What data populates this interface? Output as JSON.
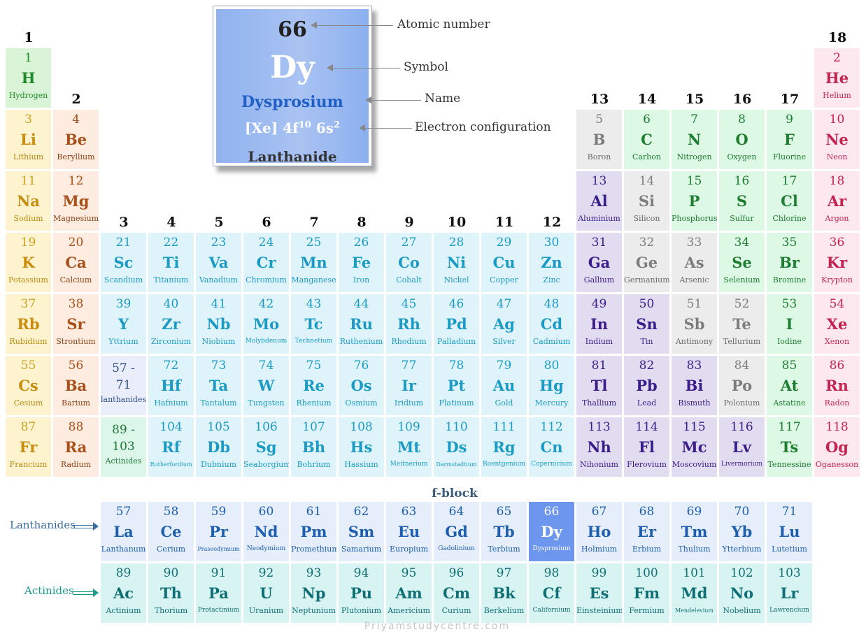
{
  "featured": {
    "number": "66",
    "symbol": "Dy",
    "name": "Dysprosium",
    "config_prefix": "[Xe] 4f",
    "config_exp1": "10",
    "config_mid": " 6s",
    "config_exp2": "2",
    "category": "Lanthanide"
  },
  "annotations": {
    "atomic_number": "Atomic number",
    "symbol": "Symbol",
    "name": "Name",
    "electron_configuration": "Electron configuration"
  },
  "f_block_label": "f-block",
  "row_labels": {
    "lanthanides": "Lanthanides",
    "actinides": "Actinides"
  },
  "watermark": "Priyamstudycentre.com",
  "groups": [
    {
      "n": "1",
      "col": 1,
      "row": 1
    },
    {
      "n": "2",
      "col": 2,
      "row": 2
    },
    {
      "n": "3",
      "col": 3,
      "row": 4
    },
    {
      "n": "4",
      "col": 4,
      "row": 4
    },
    {
      "n": "5",
      "col": 5,
      "row": 4
    },
    {
      "n": "6",
      "col": 6,
      "row": 4
    },
    {
      "n": "7",
      "col": 7,
      "row": 4
    },
    {
      "n": "8",
      "col": 8,
      "row": 4
    },
    {
      "n": "9",
      "col": 9,
      "row": 4
    },
    {
      "n": "10",
      "col": 10,
      "row": 4
    },
    {
      "n": "11",
      "col": 11,
      "row": 4
    },
    {
      "n": "12",
      "col": 12,
      "row": 4
    },
    {
      "n": "13",
      "col": 13,
      "row": 2
    },
    {
      "n": "14",
      "col": 14,
      "row": 2
    },
    {
      "n": "15",
      "col": 15,
      "row": 2
    },
    {
      "n": "16",
      "col": 16,
      "row": 2
    },
    {
      "n": "17",
      "col": 17,
      "row": 2
    },
    {
      "n": "18",
      "col": 18,
      "row": 1
    }
  ],
  "colors": {
    "alkali": {
      "bg": "#fdf3cf",
      "num": "#c9a227",
      "sym": "#c98d0c",
      "name": "#b88a10"
    },
    "alkaline": {
      "bg": "#fdecdf",
      "num": "#a8501a",
      "sym": "#a8501a",
      "name": "#8f4215"
    },
    "transition": {
      "bg": "#dff3fa",
      "num": "#1b9bc4",
      "sym": "#1b9bc4",
      "name": "#1b9bc4"
    },
    "post": {
      "bg": "#e2dcf0",
      "num": "#3a1d8a",
      "sym": "#3a1d8a",
      "name": "#3a1d8a"
    },
    "metalloid": {
      "bg": "#ececec",
      "num": "#7d7d7d",
      "sym": "#7d7d7d",
      "name": "#6b6b6b"
    },
    "nonmetal": {
      "bg": "#ddf8e5",
      "num": "#1d7d30",
      "sym": "#1d7d30",
      "name": "#1d7d30"
    },
    "noble": {
      "bg": "#fde8ef",
      "num": "#c4234f",
      "sym": "#c4234f",
      "name": "#c4234f"
    },
    "hydrogen": {
      "bg": "#d9f4d6",
      "num": "#1f8a2a",
      "sym": "#1f8a2a",
      "name": "#1f8a2a"
    },
    "lanth": {
      "bg": "#e6eefc",
      "num": "#1d5fae",
      "sym": "#1d5fae",
      "name": "#1d5fae"
    },
    "lanthsel": {
      "bg": "#6d96ee",
      "num": "#ffffff",
      "sym": "#ffffff",
      "name": "#ffffff"
    },
    "actin": {
      "bg": "#d7f4f3",
      "num": "#0f6f74",
      "sym": "#0f6f74",
      "name": "#0f6f74"
    },
    "lanth_range": {
      "bg": "#eaeefb",
      "num": "#2d4f88",
      "sym": "#2d4f88",
      "name": "#2d4f88"
    },
    "actin_range": {
      "bg": "#dcf6ea",
      "num": "#1f7a3a",
      "sym": "#1f7a3a",
      "name": "#1f7a3a"
    },
    "row_label_lanth": "#3b6ea0",
    "row_label_actin": "#1a9a8c"
  },
  "elements": [
    {
      "num": "1",
      "sym": "H",
      "name": "Hydrogen",
      "col": 1,
      "row": 1,
      "cat": "hydrogen"
    },
    {
      "num": "2",
      "sym": "He",
      "name": "Helium",
      "col": 18,
      "row": 1,
      "cat": "noble"
    },
    {
      "num": "3",
      "sym": "Li",
      "name": "Lithium",
      "col": 1,
      "row": 2,
      "cat": "alkali"
    },
    {
      "num": "4",
      "sym": "Be",
      "name": "Beryllium",
      "col": 2,
      "row": 2,
      "cat": "alkaline"
    },
    {
      "num": "5",
      "sym": "B",
      "name": "Boron",
      "col": 13,
      "row": 2,
      "cat": "metalloid"
    },
    {
      "num": "6",
      "sym": "C",
      "name": "Carbon",
      "col": 14,
      "row": 2,
      "cat": "nonmetal"
    },
    {
      "num": "7",
      "sym": "N",
      "name": "Nitrogen",
      "col": 15,
      "row": 2,
      "cat": "nonmetal"
    },
    {
      "num": "8",
      "sym": "O",
      "name": "Oxygen",
      "col": 16,
      "row": 2,
      "cat": "nonmetal"
    },
    {
      "num": "9",
      "sym": "F",
      "name": "Fluorine",
      "col": 17,
      "row": 2,
      "cat": "nonmetal"
    },
    {
      "num": "10",
      "sym": "Ne",
      "name": "Neon",
      "col": 18,
      "row": 2,
      "cat": "noble"
    },
    {
      "num": "11",
      "sym": "Na",
      "name": "Sodium",
      "col": 1,
      "row": 3,
      "cat": "alkali"
    },
    {
      "num": "12",
      "sym": "Mg",
      "name": "Magnesium",
      "col": 2,
      "row": 3,
      "cat": "alkaline"
    },
    {
      "num": "13",
      "sym": "Al",
      "name": "Aluminium",
      "col": 13,
      "row": 3,
      "cat": "post"
    },
    {
      "num": "14",
      "sym": "Si",
      "name": "Silicon",
      "col": 14,
      "row": 3,
      "cat": "metalloid"
    },
    {
      "num": "15",
      "sym": "P",
      "name": "Phosphorus",
      "col": 15,
      "row": 3,
      "cat": "nonmetal"
    },
    {
      "num": "16",
      "sym": "S",
      "name": "Sulfur",
      "col": 16,
      "row": 3,
      "cat": "nonmetal"
    },
    {
      "num": "17",
      "sym": "Cl",
      "name": "Chlorine",
      "col": 17,
      "row": 3,
      "cat": "nonmetal"
    },
    {
      "num": "18",
      "sym": "Ar",
      "name": "Argon",
      "col": 18,
      "row": 3,
      "cat": "noble"
    },
    {
      "num": "19",
      "sym": "K",
      "name": "Potassium",
      "col": 1,
      "row": 4,
      "cat": "alkali"
    },
    {
      "num": "20",
      "sym": "Ca",
      "name": "Calcium",
      "col": 2,
      "row": 4,
      "cat": "alkaline"
    },
    {
      "num": "21",
      "sym": "Sc",
      "name": "Scandium",
      "col": 3,
      "row": 4,
      "cat": "transition"
    },
    {
      "num": "22",
      "sym": "Ti",
      "name": "Titanium",
      "col": 4,
      "row": 4,
      "cat": "transition"
    },
    {
      "num": "23",
      "sym": "Va",
      "name": "Vanadium",
      "col": 5,
      "row": 4,
      "cat": "transition"
    },
    {
      "num": "24",
      "sym": "Cr",
      "name": "Chromium",
      "col": 6,
      "row": 4,
      "cat": "transition"
    },
    {
      "num": "25",
      "sym": "Mn",
      "name": "Manganese",
      "col": 7,
      "row": 4,
      "cat": "transition"
    },
    {
      "num": "26",
      "sym": "Fe",
      "name": "Iron",
      "col": 8,
      "row": 4,
      "cat": "transition"
    },
    {
      "num": "27",
      "sym": "Co",
      "name": "Cobalt",
      "col": 9,
      "row": 4,
      "cat": "transition"
    },
    {
      "num": "28",
      "sym": "Ni",
      "name": "Nickel",
      "col": 10,
      "row": 4,
      "cat": "transition"
    },
    {
      "num": "29",
      "sym": "Cu",
      "name": "Copper",
      "col": 11,
      "row": 4,
      "cat": "transition"
    },
    {
      "num": "30",
      "sym": "Zn",
      "name": "Zinc",
      "col": 12,
      "row": 4,
      "cat": "transition"
    },
    {
      "num": "31",
      "sym": "Ga",
      "name": "Gallium",
      "col": 13,
      "row": 4,
      "cat": "post"
    },
    {
      "num": "32",
      "sym": "Ge",
      "name": "Germanium",
      "col": 14,
      "row": 4,
      "cat": "metalloid"
    },
    {
      "num": "33",
      "sym": "As",
      "name": "Arsenic",
      "col": 15,
      "row": 4,
      "cat": "metalloid"
    },
    {
      "num": "34",
      "sym": "Se",
      "name": "Selenium",
      "col": 16,
      "row": 4,
      "cat": "nonmetal"
    },
    {
      "num": "35",
      "sym": "Br",
      "name": "Bromine",
      "col": 17,
      "row": 4,
      "cat": "nonmetal"
    },
    {
      "num": "36",
      "sym": "Kr",
      "name": "Krypton",
      "col": 18,
      "row": 4,
      "cat": "noble"
    },
    {
      "num": "37",
      "sym": "Rb",
      "name": "Rubidium",
      "col": 1,
      "row": 5,
      "cat": "alkali"
    },
    {
      "num": "38",
      "sym": "Sr",
      "name": "Strontium",
      "col": 2,
      "row": 5,
      "cat": "alkaline"
    },
    {
      "num": "39",
      "sym": "Y",
      "name": "Yttrium",
      "col": 3,
      "row": 5,
      "cat": "transition"
    },
    {
      "num": "40",
      "sym": "Zr",
      "name": "Zirconium",
      "col": 4,
      "row": 5,
      "cat": "transition"
    },
    {
      "num": "41",
      "sym": "Nb",
      "name": "Niobium",
      "col": 5,
      "row": 5,
      "cat": "transition"
    },
    {
      "num": "42",
      "sym": "Mo",
      "name": "Molybdenum",
      "col": 6,
      "row": 5,
      "cat": "transition",
      "fs": "sm"
    },
    {
      "num": "43",
      "sym": "Tc",
      "name": "Technetium",
      "col": 7,
      "row": 5,
      "cat": "transition",
      "fs": "sm"
    },
    {
      "num": "44",
      "sym": "Ru",
      "name": "Ruthenium",
      "col": 8,
      "row": 5,
      "cat": "transition"
    },
    {
      "num": "45",
      "sym": "Rh",
      "name": "Rhodium",
      "col": 9,
      "row": 5,
      "cat": "transition"
    },
    {
      "num": "46",
      "sym": "Pd",
      "name": "Palladium",
      "col": 10,
      "row": 5,
      "cat": "transition"
    },
    {
      "num": "47",
      "sym": "Ag",
      "name": "Silver",
      "col": 11,
      "row": 5,
      "cat": "transition"
    },
    {
      "num": "48",
      "sym": "Cd",
      "name": "Cadmium",
      "col": 12,
      "row": 5,
      "cat": "transition"
    },
    {
      "num": "49",
      "sym": "In",
      "name": "Indium",
      "col": 13,
      "row": 5,
      "cat": "post"
    },
    {
      "num": "50",
      "sym": "Sn",
      "name": "Tin",
      "col": 14,
      "row": 5,
      "cat": "post"
    },
    {
      "num": "51",
      "sym": "Sb",
      "name": "Antimony",
      "col": 15,
      "row": 5,
      "cat": "metalloid"
    },
    {
      "num": "52",
      "sym": "Te",
      "name": "Tellurium",
      "col": 16,
      "row": 5,
      "cat": "metalloid"
    },
    {
      "num": "53",
      "sym": "I",
      "name": "Iodine",
      "col": 17,
      "row": 5,
      "cat": "nonmetal"
    },
    {
      "num": "54",
      "sym": "Xe",
      "name": "Xenon",
      "col": 18,
      "row": 5,
      "cat": "noble"
    },
    {
      "num": "55",
      "sym": "Cs",
      "name": "Cesium",
      "col": 1,
      "row": 6,
      "cat": "alkali"
    },
    {
      "num": "56",
      "sym": "Ba",
      "name": "Barium",
      "col": 2,
      "row": 6,
      "cat": "alkaline"
    },
    {
      "num": "57 -",
      "sym": "71",
      "name": "lanthanides",
      "col": 3,
      "row": 6,
      "cat": "lanth_range",
      "range": true
    },
    {
      "num": "72",
      "sym": "Hf",
      "name": "Hafnium",
      "col": 4,
      "row": 6,
      "cat": "transition"
    },
    {
      "num": "73",
      "sym": "Ta",
      "name": "Tantalum",
      "col": 5,
      "row": 6,
      "cat": "transition"
    },
    {
      "num": "74",
      "sym": "W",
      "name": "Tungsten",
      "col": 6,
      "row": 6,
      "cat": "transition"
    },
    {
      "num": "75",
      "sym": "Re",
      "name": "Rhenium",
      "col": 7,
      "row": 6,
      "cat": "transition"
    },
    {
      "num": "76",
      "sym": "Os",
      "name": "Osmium",
      "col": 8,
      "row": 6,
      "cat": "transition"
    },
    {
      "num": "77",
      "sym": "Ir",
      "name": "Iridium",
      "col": 9,
      "row": 6,
      "cat": "transition"
    },
    {
      "num": "78",
      "sym": "Pt",
      "name": "Platinum",
      "col": 10,
      "row": 6,
      "cat": "transition"
    },
    {
      "num": "79",
      "sym": "Au",
      "name": "Gold",
      "col": 11,
      "row": 6,
      "cat": "transition"
    },
    {
      "num": "80",
      "sym": "Hg",
      "name": "Mercury",
      "col": 12,
      "row": 6,
      "cat": "transition"
    },
    {
      "num": "81",
      "sym": "Tl",
      "name": "Thallium",
      "col": 13,
      "row": 6,
      "cat": "post"
    },
    {
      "num": "82",
      "sym": "Pb",
      "name": "Lead",
      "col": 14,
      "row": 6,
      "cat": "post"
    },
    {
      "num": "83",
      "sym": "Bi",
      "name": "Bismuth",
      "col": 15,
      "row": 6,
      "cat": "post"
    },
    {
      "num": "84",
      "sym": "Po",
      "name": "Polonium",
      "col": 16,
      "row": 6,
      "cat": "metalloid"
    },
    {
      "num": "85",
      "sym": "At",
      "name": "Astatine",
      "col": 17,
      "row": 6,
      "cat": "nonmetal"
    },
    {
      "num": "86",
      "sym": "Rn",
      "name": "Radon",
      "col": 18,
      "row": 6,
      "cat": "noble"
    },
    {
      "num": "87",
      "sym": "Fr",
      "name": "Francium",
      "col": 1,
      "row": 7,
      "cat": "alkali"
    },
    {
      "num": "88",
      "sym": "Ra",
      "name": "Radium",
      "col": 2,
      "row": 7,
      "cat": "alkaline"
    },
    {
      "num": "89 -",
      "sym": "103",
      "name": "Actinides",
      "col": 3,
      "row": 7,
      "cat": "actin_range",
      "range": true
    },
    {
      "num": "104",
      "sym": "Rf",
      "name": "Rutherfordium",
      "col": 4,
      "row": 7,
      "cat": "transition",
      "fs": "xs"
    },
    {
      "num": "105",
      "sym": "Db",
      "name": "Dubnium",
      "col": 5,
      "row": 7,
      "cat": "transition"
    },
    {
      "num": "106",
      "sym": "Sg",
      "name": "Seaborgium",
      "col": 6,
      "row": 7,
      "cat": "transition"
    },
    {
      "num": "107",
      "sym": "Bh",
      "name": "Bohrium",
      "col": 7,
      "row": 7,
      "cat": "transition"
    },
    {
      "num": "108",
      "sym": "Hs",
      "name": "Hassium",
      "col": 8,
      "row": 7,
      "cat": "transition"
    },
    {
      "num": "109",
      "sym": "Mt",
      "name": "Meitnerium",
      "col": 9,
      "row": 7,
      "cat": "transition",
      "fs": "sm"
    },
    {
      "num": "110",
      "sym": "Ds",
      "name": "Darmstadtium",
      "col": 10,
      "row": 7,
      "cat": "transition",
      "fs": "xs"
    },
    {
      "num": "111",
      "sym": "Rg",
      "name": "Roentgenium",
      "col": 11,
      "row": 7,
      "cat": "transition",
      "fs": "sm"
    },
    {
      "num": "112",
      "sym": "Cn",
      "name": "Copernicium",
      "col": 12,
      "row": 7,
      "cat": "transition",
      "fs": "sm"
    },
    {
      "num": "113",
      "sym": "Nh",
      "name": "Nihonium",
      "col": 13,
      "row": 7,
      "cat": "post"
    },
    {
      "num": "114",
      "sym": "Fl",
      "name": "Flerovium",
      "col": 14,
      "row": 7,
      "cat": "post"
    },
    {
      "num": "115",
      "sym": "Mc",
      "name": "Moscovium",
      "col": 15,
      "row": 7,
      "cat": "post"
    },
    {
      "num": "116",
      "sym": "Lv",
      "name": "Livermorium",
      "col": 16,
      "row": 7,
      "cat": "post",
      "fs": "sm"
    },
    {
      "num": "117",
      "sym": "Ts",
      "name": "Tennessine",
      "col": 17,
      "row": 7,
      "cat": "nonmetal"
    },
    {
      "num": "118",
      "sym": "Og",
      "name": "Oganesson",
      "col": 18,
      "row": 7,
      "cat": "noble"
    },
    {
      "num": "57",
      "sym": "La",
      "name": "Lanthanum",
      "col": 3,
      "row": 9,
      "cat": "lanth"
    },
    {
      "num": "58",
      "sym": "Ce",
      "name": "Cerium",
      "col": 4,
      "row": 9,
      "cat": "lanth"
    },
    {
      "num": "59",
      "sym": "Pr",
      "name": "Praseodymium",
      "col": 5,
      "row": 9,
      "cat": "lanth",
      "fs": "xs"
    },
    {
      "num": "60",
      "sym": "Nd",
      "name": "Neodymium",
      "col": 6,
      "row": 9,
      "cat": "lanth",
      "fs": "sm"
    },
    {
      "num": "61",
      "sym": "Pm",
      "name": "Promethium",
      "col": 7,
      "row": 9,
      "cat": "lanth"
    },
    {
      "num": "62",
      "sym": "Sm",
      "name": "Samarium",
      "col": 8,
      "row": 9,
      "cat": "lanth"
    },
    {
      "num": "63",
      "sym": "Eu",
      "name": "Europium",
      "col": 9,
      "row": 9,
      "cat": "lanth"
    },
    {
      "num": "64",
      "sym": "Gd",
      "name": "Gadolinium",
      "col": 10,
      "row": 9,
      "cat": "lanth",
      "fs": "sm"
    },
    {
      "num": "65",
      "sym": "Tb",
      "name": "Terbium",
      "col": 11,
      "row": 9,
      "cat": "lanth"
    },
    {
      "num": "66",
      "sym": "Dy",
      "name": "Dysprosium",
      "col": 12,
      "row": 9,
      "cat": "lanthsel",
      "fs": "sm"
    },
    {
      "num": "67",
      "sym": "Ho",
      "name": "Holmium",
      "col": 13,
      "row": 9,
      "cat": "lanth"
    },
    {
      "num": "68",
      "sym": "Er",
      "name": "Erbium",
      "col": 14,
      "row": 9,
      "cat": "lanth"
    },
    {
      "num": "69",
      "sym": "Tm",
      "name": "Thulium",
      "col": 15,
      "row": 9,
      "cat": "lanth"
    },
    {
      "num": "70",
      "sym": "Yb",
      "name": "Ytterbium",
      "col": 16,
      "row": 9,
      "cat": "lanth"
    },
    {
      "num": "71",
      "sym": "Lu",
      "name": "Lutetium",
      "col": 17,
      "row": 9,
      "cat": "lanth"
    },
    {
      "num": "89",
      "sym": "Ac",
      "name": "Actinium",
      "col": 3,
      "row": 10,
      "cat": "actin"
    },
    {
      "num": "90",
      "sym": "Th",
      "name": "Thorium",
      "col": 4,
      "row": 10,
      "cat": "actin"
    },
    {
      "num": "91",
      "sym": "Pa",
      "name": "Protactinium",
      "col": 5,
      "row": 10,
      "cat": "actin",
      "fs": "sm"
    },
    {
      "num": "92",
      "sym": "U",
      "name": "Uranium",
      "col": 6,
      "row": 10,
      "cat": "actin"
    },
    {
      "num": "93",
      "sym": "Np",
      "name": "Neptunium",
      "col": 7,
      "row": 10,
      "cat": "actin"
    },
    {
      "num": "94",
      "sym": "Pu",
      "name": "Plutonium",
      "col": 8,
      "row": 10,
      "cat": "actin"
    },
    {
      "num": "95",
      "sym": "Am",
      "name": "Americium",
      "col": 9,
      "row": 10,
      "cat": "actin"
    },
    {
      "num": "96",
      "sym": "Cm",
      "name": "Curium",
      "col": 10,
      "row": 10,
      "cat": "actin"
    },
    {
      "num": "97",
      "sym": "Bk",
      "name": "Berkelium",
      "col": 11,
      "row": 10,
      "cat": "actin"
    },
    {
      "num": "98",
      "sym": "Cf",
      "name": "Californium",
      "col": 12,
      "row": 10,
      "cat": "actin",
      "fs": "sm"
    },
    {
      "num": "99",
      "sym": "Es",
      "name": "Einsteinium",
      "col": 13,
      "row": 10,
      "cat": "actin"
    },
    {
      "num": "100",
      "sym": "Fm",
      "name": "Fermium",
      "col": 14,
      "row": 10,
      "cat": "actin"
    },
    {
      "num": "101",
      "sym": "Md",
      "name": "Mendelevium",
      "col": 15,
      "row": 10,
      "cat": "actin",
      "fs": "xs"
    },
    {
      "num": "102",
      "sym": "No",
      "name": "Nobelium",
      "col": 16,
      "row": 10,
      "cat": "actin"
    },
    {
      "num": "103",
      "sym": "Lr",
      "name": "Lawrencium",
      "col": 17,
      "row": 10,
      "cat": "actin",
      "fs": "sm"
    }
  ]
}
